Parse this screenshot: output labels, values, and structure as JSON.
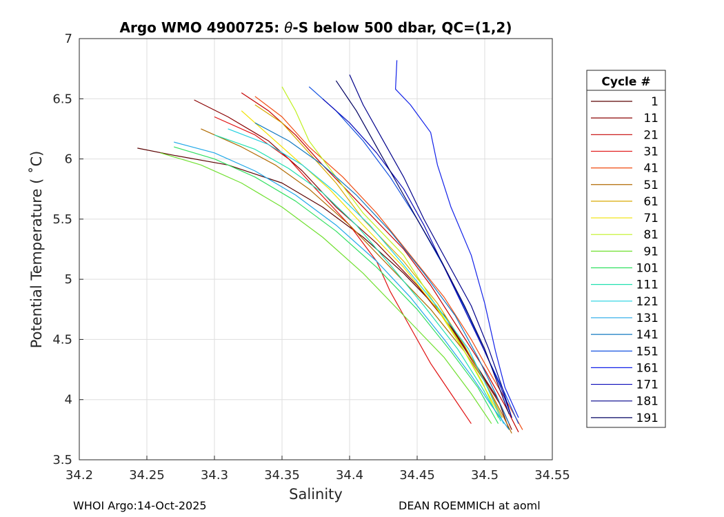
{
  "chart_data": {
    "type": "line",
    "title_prefix": "Argo WMO 4900725: ",
    "title_theta": "θ",
    "title_suffix": "-S below 500 dbar,  QC=(1,2)",
    "xlabel": "Salinity",
    "ylabel": "Potential Temperature ( ˚C)",
    "xlim": [
      34.2,
      34.55
    ],
    "ylim": [
      3.5,
      7
    ],
    "xticks": [
      34.2,
      34.25,
      34.3,
      34.35,
      34.4,
      34.45,
      34.5,
      34.55
    ],
    "xtick_labels": [
      "34.2",
      "34.25",
      "34.3",
      "34.35",
      "34.4",
      "34.45",
      "34.5",
      "34.55"
    ],
    "yticks": [
      3.5,
      4,
      4.5,
      5,
      5.5,
      6,
      6.5,
      7
    ],
    "ytick_labels": [
      "3.5",
      "4",
      "4.5",
      "5",
      "5.5",
      "6",
      "6.5",
      "7"
    ],
    "grid": true,
    "legend_title": "Cycle #",
    "legend_placement": "right-outside",
    "legend": [
      {
        "label": "1",
        "color": "#5a0000"
      },
      {
        "label": "11",
        "color": "#8a0000"
      },
      {
        "label": "21",
        "color": "#c40000"
      },
      {
        "label": "31",
        "color": "#e01010"
      },
      {
        "label": "41",
        "color": "#f04a10"
      },
      {
        "label": "51",
        "color": "#b06a00"
      },
      {
        "label": "61",
        "color": "#d8a800"
      },
      {
        "label": "71",
        "color": "#f0e000"
      },
      {
        "label": "81",
        "color": "#c0f020"
      },
      {
        "label": "91",
        "color": "#70e030"
      },
      {
        "label": "101",
        "color": "#30e060"
      },
      {
        "label": "111",
        "color": "#20e0b0"
      },
      {
        "label": "121",
        "color": "#20d0e0"
      },
      {
        "label": "131",
        "color": "#20a8e8"
      },
      {
        "label": "141",
        "color": "#1078c0"
      },
      {
        "label": "151",
        "color": "#1050e0"
      },
      {
        "label": "161",
        "color": "#1020e8"
      },
      {
        "label": "171",
        "color": "#0808b8"
      },
      {
        "label": "181",
        "color": "#00008a"
      },
      {
        "label": "191",
        "color": "#000060"
      }
    ],
    "series": [
      {
        "name": "cycle 1",
        "color": "#5a0000",
        "s": [
          34.243,
          34.27,
          34.31,
          34.35,
          34.38,
          34.41,
          34.44,
          34.47,
          34.49,
          34.51,
          34.518
        ],
        "t": [
          6.09,
          6.03,
          5.95,
          5.8,
          5.6,
          5.35,
          5.05,
          4.7,
          4.35,
          4.0,
          3.75
        ]
      },
      {
        "name": "cycle 11",
        "color": "#8a0000",
        "s": [
          34.285,
          34.31,
          34.34,
          34.365,
          34.39,
          34.42,
          34.45,
          34.475,
          34.495,
          34.512,
          34.52
        ],
        "t": [
          6.49,
          6.35,
          6.15,
          5.9,
          5.6,
          5.3,
          4.95,
          4.6,
          4.25,
          3.95,
          3.75
        ]
      },
      {
        "name": "cycle 21",
        "color": "#c40000",
        "s": [
          34.32,
          34.34,
          34.36,
          34.38,
          34.41,
          34.44,
          34.46,
          34.48,
          34.5,
          34.515,
          34.525
        ],
        "t": [
          6.55,
          6.4,
          6.2,
          5.95,
          5.6,
          5.25,
          4.95,
          4.6,
          4.25,
          3.95,
          3.73
        ]
      },
      {
        "name": "cycle 31",
        "color": "#e01010",
        "s": [
          34.3,
          34.33,
          34.355,
          34.375,
          34.4,
          34.42,
          34.43,
          34.445,
          34.46,
          34.475,
          34.49
        ],
        "t": [
          6.35,
          6.2,
          6.0,
          5.75,
          5.45,
          5.15,
          4.9,
          4.6,
          4.3,
          4.05,
          3.8
        ]
      },
      {
        "name": "cycle 41",
        "color": "#f04a10",
        "s": [
          34.33,
          34.35,
          34.37,
          34.395,
          34.42,
          34.445,
          34.47,
          34.49,
          34.505,
          34.518,
          34.528
        ],
        "t": [
          6.52,
          6.35,
          6.1,
          5.85,
          5.55,
          5.2,
          4.85,
          4.5,
          4.2,
          3.95,
          3.75
        ]
      },
      {
        "name": "cycle 51",
        "color": "#b06a00",
        "s": [
          34.29,
          34.32,
          34.345,
          34.37,
          34.4,
          34.43,
          34.46,
          34.485,
          34.5,
          34.512,
          34.52
        ],
        "t": [
          6.25,
          6.1,
          5.95,
          5.75,
          5.45,
          5.1,
          4.75,
          4.4,
          4.15,
          3.9,
          3.72
        ]
      },
      {
        "name": "cycle 61",
        "color": "#d8a800",
        "s": [
          34.33,
          34.35,
          34.37,
          34.39,
          34.41,
          34.44,
          34.465,
          34.485,
          34.5,
          34.513
        ],
        "t": [
          6.45,
          6.3,
          6.05,
          5.8,
          5.5,
          5.15,
          4.8,
          4.45,
          4.15,
          3.85
        ]
      },
      {
        "name": "cycle 71",
        "color": "#f0e000",
        "s": [
          34.32,
          34.34,
          34.36,
          34.385,
          34.41,
          34.44,
          34.465,
          34.485,
          34.5,
          34.512
        ],
        "t": [
          6.4,
          6.2,
          6.0,
          5.75,
          5.45,
          5.1,
          4.75,
          4.4,
          4.1,
          3.85
        ]
      },
      {
        "name": "cycle 81",
        "color": "#c0f020",
        "s": [
          34.35,
          34.36,
          34.37,
          34.39,
          34.41,
          34.44,
          34.46,
          34.48,
          34.498,
          34.51
        ],
        "t": [
          6.6,
          6.4,
          6.15,
          5.85,
          5.55,
          5.2,
          4.85,
          4.5,
          4.15,
          3.85
        ]
      },
      {
        "name": "cycle 91",
        "color": "#70e030",
        "s": [
          34.26,
          34.29,
          34.32,
          34.35,
          34.38,
          34.41,
          34.44,
          34.47,
          34.49,
          34.505
        ],
        "t": [
          6.05,
          5.95,
          5.8,
          5.6,
          5.35,
          5.05,
          4.7,
          4.35,
          4.05,
          3.8
        ]
      },
      {
        "name": "cycle 101",
        "color": "#30e060",
        "s": [
          34.27,
          34.3,
          34.33,
          34.36,
          34.39,
          34.42,
          34.45,
          34.475,
          34.495,
          34.51
        ],
        "t": [
          6.1,
          6.0,
          5.85,
          5.65,
          5.4,
          5.1,
          4.75,
          4.4,
          4.1,
          3.8
        ]
      },
      {
        "name": "cycle 111",
        "color": "#20e0b0",
        "s": [
          34.3,
          34.33,
          34.355,
          34.38,
          34.405,
          34.43,
          34.455,
          34.48,
          34.498,
          34.512
        ],
        "t": [
          6.2,
          6.08,
          5.92,
          5.72,
          5.45,
          5.12,
          4.78,
          4.42,
          4.1,
          3.82
        ]
      },
      {
        "name": "cycle 121",
        "color": "#20d0e0",
        "s": [
          34.31,
          34.34,
          34.365,
          34.39,
          34.415,
          34.44,
          34.465,
          34.488,
          34.502,
          34.514
        ],
        "t": [
          6.25,
          6.12,
          5.95,
          5.72,
          5.45,
          5.12,
          4.77,
          4.42,
          4.1,
          3.8
        ]
      },
      {
        "name": "cycle 131",
        "color": "#20a8e8",
        "s": [
          34.27,
          34.3,
          34.33,
          34.36,
          34.39,
          34.42,
          34.445,
          34.47,
          34.49,
          34.505,
          34.518
        ],
        "t": [
          6.14,
          6.05,
          5.9,
          5.7,
          5.45,
          5.15,
          4.85,
          4.5,
          4.2,
          3.95,
          3.75
        ]
      },
      {
        "name": "cycle 141",
        "color": "#1078c0",
        "s": [
          34.33,
          34.355,
          34.38,
          34.405,
          34.43,
          34.455,
          34.478,
          34.495,
          34.508,
          34.518
        ],
        "t": [
          6.3,
          6.15,
          5.95,
          5.7,
          5.4,
          5.05,
          4.7,
          4.35,
          4.05,
          3.8
        ]
      },
      {
        "name": "cycle 151",
        "color": "#1050e0",
        "s": [
          34.37,
          34.39,
          34.41,
          34.43,
          34.45,
          34.47,
          34.488,
          34.502,
          34.515,
          34.525
        ],
        "t": [
          6.6,
          6.4,
          6.15,
          5.85,
          5.5,
          5.1,
          4.7,
          4.35,
          4.05,
          3.8
        ]
      },
      {
        "name": "cycle 161",
        "color": "#1020e8",
        "s": [
          34.435,
          34.434,
          34.445,
          34.46,
          34.465,
          34.475,
          34.49,
          34.5,
          34.508,
          34.515,
          34.525
        ],
        "t": [
          6.82,
          6.58,
          6.45,
          6.22,
          5.95,
          5.6,
          5.2,
          4.8,
          4.4,
          4.1,
          3.85
        ]
      },
      {
        "name": "cycle 171",
        "color": "#0808b8",
        "s": [
          34.38,
          34.4,
          34.42,
          34.44,
          34.455,
          34.47,
          34.485,
          34.5,
          34.512,
          34.52
        ],
        "t": [
          6.5,
          6.3,
          6.05,
          5.75,
          5.45,
          5.1,
          4.75,
          4.4,
          4.1,
          3.85
        ]
      },
      {
        "name": "cycle 181",
        "color": "#00008a",
        "s": [
          34.4,
          34.41,
          34.425,
          34.44,
          34.455,
          34.472,
          34.49,
          34.503,
          34.513,
          34.52
        ],
        "t": [
          6.7,
          6.45,
          6.15,
          5.85,
          5.5,
          5.15,
          4.78,
          4.42,
          4.1,
          3.85
        ]
      },
      {
        "name": "cycle 191",
        "color": "#000060",
        "s": [
          34.39,
          34.405,
          34.42,
          34.435,
          34.45,
          34.468,
          34.485,
          34.5,
          34.51,
          34.518
        ],
        "t": [
          6.65,
          6.4,
          6.1,
          5.8,
          5.5,
          5.15,
          4.78,
          4.42,
          4.12,
          3.88
        ]
      }
    ]
  },
  "footer": {
    "left": "WHOI Argo:14-Oct-2025",
    "right": "DEAN ROEMMICH at aoml"
  }
}
